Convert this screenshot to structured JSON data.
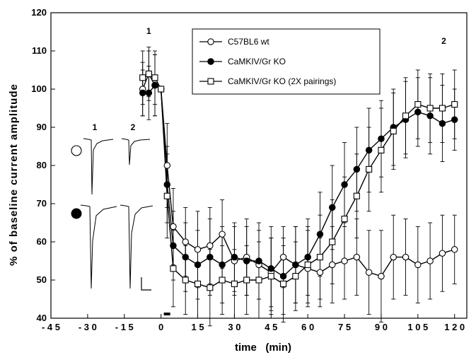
{
  "chart_data": {
    "type": "line",
    "xlabel": "time   (min)",
    "ylabel": "% of baseline current amplitude",
    "xlim": [
      -45,
      125
    ],
    "ylim": [
      40,
      120
    ],
    "xticks": [
      -45,
      -30,
      -15,
      0,
      15,
      30,
      45,
      60,
      75,
      90,
      105,
      120
    ],
    "xtick_labels": [
      "- 4 5",
      "- 3 0",
      "- 1 5",
      "0",
      "1 5",
      "3 0",
      "4 5",
      "6 0",
      "7 5",
      "9 0",
      "1 0 5",
      "1 2 0"
    ],
    "yticks": [
      40,
      50,
      60,
      70,
      80,
      90,
      100,
      110,
      120
    ],
    "legend_position": "top-center",
    "grid": false,
    "x": [
      -7.5,
      -5,
      -2.5,
      0,
      2.5,
      5,
      10,
      15,
      20,
      25,
      30,
      35,
      40,
      45,
      50,
      55,
      60,
      65,
      70,
      75,
      80,
      85,
      90,
      95,
      100,
      105,
      110,
      115,
      120
    ],
    "series": [
      {
        "name": "C57BL6 wt",
        "marker": "open-circle",
        "values": [
          100,
          104,
          101,
          100,
          80,
          64,
          60,
          58,
          59,
          62,
          55,
          56,
          54,
          52,
          56,
          54,
          53,
          52,
          54,
          55,
          56,
          52,
          51,
          56,
          56,
          54,
          55,
          57,
          58
        ],
        "errors": [
          7,
          6,
          8,
          0,
          11,
          10,
          9,
          10,
          10,
          9,
          9,
          10,
          9,
          9,
          8,
          10,
          10,
          9,
          10,
          10,
          10,
          11,
          12,
          11,
          10,
          10,
          10,
          10,
          9
        ]
      },
      {
        "name": "CaMKIV/Gr KO",
        "marker": "filled-circle",
        "values": [
          99,
          99,
          101,
          100,
          75,
          59,
          56,
          54,
          56,
          54,
          56,
          55,
          55,
          53,
          51,
          54,
          56,
          62,
          69,
          75,
          79,
          84,
          87,
          90,
          92,
          94,
          93,
          91,
          92
        ],
        "errors": [
          6,
          7,
          8,
          0,
          10,
          9,
          9,
          9,
          10,
          10,
          9,
          9,
          10,
          11,
          10,
          10,
          10,
          11,
          11,
          11,
          11,
          11,
          10,
          10,
          10,
          9,
          10,
          10,
          8
        ]
      },
      {
        "name": "CaMKIV/Gr KO (2X pairings)",
        "marker": "open-square",
        "values": [
          103,
          104,
          103,
          100,
          72,
          53,
          50,
          49,
          48,
          50,
          49,
          50,
          50,
          51,
          49,
          51,
          54,
          56,
          60,
          66,
          72,
          79,
          84,
          89,
          93,
          96,
          95,
          95,
          96
        ],
        "errors": [
          7,
          7,
          7,
          0,
          11,
          10,
          9,
          9,
          10,
          9,
          9,
          9,
          10,
          10,
          10,
          9,
          10,
          11,
          11,
          11,
          11,
          11,
          11,
          10,
          10,
          9,
          9,
          9,
          9
        ]
      }
    ],
    "annotations": [
      {
        "text": "1",
        "x": -5
      },
      {
        "text": "2",
        "x": 115
      }
    ],
    "inset": {
      "column_labels": [
        "1",
        "2"
      ],
      "row_markers": [
        "open-circle",
        "filled-circle"
      ]
    }
  }
}
